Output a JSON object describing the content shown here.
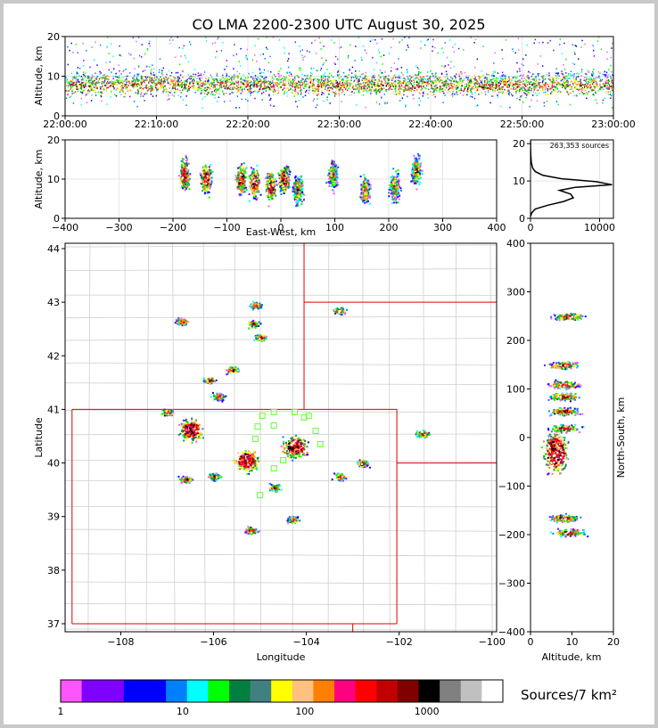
{
  "chart_data": [
    {
      "type": "heatmap",
      "panel": "time-altitude",
      "title": "CO LMA 2200-2300 UTC August 30, 2025",
      "ylabel": "Altitude, km",
      "ylim": [
        0,
        20
      ],
      "y_ticks": [
        "0",
        "10",
        "20"
      ],
      "x_ticks": [
        "22:00:00",
        "22:10:00",
        "22:20:00",
        "22:30:00",
        "22:40:00",
        "22:50:00",
        "23:00:00"
      ],
      "grid": true
    },
    {
      "type": "heatmap",
      "panel": "eastwest-altitude",
      "xlabel": "East-West, km",
      "ylabel": "Altitude, km",
      "xlim": [
        -400,
        400
      ],
      "ylim": [
        0,
        20
      ],
      "x_ticks": [
        "−400",
        "−300",
        "−200",
        "−100",
        "0",
        "100",
        "200",
        "300",
        "400"
      ],
      "y_ticks": [
        "0",
        "10",
        "20"
      ],
      "blobs": [
        {
          "x": -180,
          "y": 11
        },
        {
          "x": -140,
          "y": 10
        },
        {
          "x": -75,
          "y": 10
        },
        {
          "x": -50,
          "y": 9
        },
        {
          "x": -20,
          "y": 8
        },
        {
          "x": 5,
          "y": 10
        },
        {
          "x": 30,
          "y": 7
        },
        {
          "x": 95,
          "y": 11
        },
        {
          "x": 155,
          "y": 7
        },
        {
          "x": 210,
          "y": 8
        },
        {
          "x": 250,
          "y": 12
        }
      ]
    },
    {
      "type": "line",
      "panel": "altitude-histogram",
      "annotation": "263,353 sources",
      "xlim": [
        0,
        12000
      ],
      "ylim": [
        0,
        21
      ],
      "x_ticks": [
        "0",
        "10000"
      ],
      "y_ticks": [
        "0",
        "10",
        "20"
      ],
      "profile": [
        [
          0,
          0.5
        ],
        [
          200,
          1.5
        ],
        [
          700,
          2.5
        ],
        [
          2500,
          3.5
        ],
        [
          4800,
          4.5
        ],
        [
          6200,
          5.5
        ],
        [
          5800,
          6.5
        ],
        [
          4200,
          7.5
        ],
        [
          6500,
          8.3
        ],
        [
          11800,
          9.0
        ],
        [
          9500,
          9.8
        ],
        [
          4500,
          10.6
        ],
        [
          1800,
          11.5
        ],
        [
          700,
          12.5
        ],
        [
          300,
          13.5
        ],
        [
          120,
          15
        ],
        [
          40,
          17
        ],
        [
          10,
          19
        ],
        [
          0,
          21
        ]
      ]
    },
    {
      "type": "heatmap",
      "panel": "plan-view",
      "xlabel": "Longitude",
      "ylabel": "Latitude",
      "xlim": [
        -109.2,
        -99.9
      ],
      "ylim": [
        36.85,
        44.1
      ],
      "x_ticks": [
        "−108",
        "−106",
        "−104",
        "−102",
        "−100"
      ],
      "y_ticks": [
        "37",
        "38",
        "39",
        "40",
        "41",
        "42",
        "43",
        "44"
      ],
      "stations": [
        [
          -104.7,
          40.95
        ],
        [
          -104.25,
          40.95
        ],
        [
          -104.05,
          40.85
        ],
        [
          -103.95,
          40.88
        ],
        [
          -104.95,
          40.88
        ],
        [
          -105.05,
          40.68
        ],
        [
          -104.7,
          40.7
        ],
        [
          -103.8,
          40.6
        ],
        [
          -105.1,
          40.45
        ],
        [
          -103.7,
          40.35
        ],
        [
          -104.2,
          40.2
        ],
        [
          -104.5,
          40.05
        ],
        [
          -104.7,
          39.9
        ],
        [
          -105.0,
          39.4
        ]
      ],
      "blobs": [
        {
          "lon": -104.25,
          "lat": 40.3
        },
        {
          "lon": -105.3,
          "lat": 40.05
        },
        {
          "lon": -106.5,
          "lat": 40.62
        },
        {
          "lon": -105.2,
          "lat": 38.75
        },
        {
          "lon": -104.3,
          "lat": 38.95
        },
        {
          "lon": -103.3,
          "lat": 42.85
        },
        {
          "lon": -101.5,
          "lat": 40.55
        },
        {
          "lon": -106.0,
          "lat": 39.75
        },
        {
          "lon": -105.9,
          "lat": 41.25
        },
        {
          "lon": -106.1,
          "lat": 41.55
        },
        {
          "lon": -105.6,
          "lat": 41.75
        },
        {
          "lon": -105.0,
          "lat": 42.35
        },
        {
          "lon": -105.15,
          "lat": 42.6
        },
        {
          "lon": -105.1,
          "lat": 42.95
        },
        {
          "lon": -106.7,
          "lat": 42.65
        },
        {
          "lon": -106.6,
          "lat": 39.7
        },
        {
          "lon": -103.3,
          "lat": 39.75
        },
        {
          "lon": -102.8,
          "lat": 40.0
        },
        {
          "lon": -107.0,
          "lat": 40.95
        },
        {
          "lon": -104.7,
          "lat": 39.55
        }
      ]
    },
    {
      "type": "heatmap",
      "panel": "altitude-northsouth",
      "xlabel": "Altitude, km",
      "ylabel": "North-South, km",
      "xlim": [
        0,
        20
      ],
      "ylim": [
        -400,
        400
      ],
      "x_ticks": [
        "0",
        "10",
        "20"
      ],
      "y_ticks": [
        "−400",
        "−300",
        "−200",
        "−100",
        "0",
        "100",
        "200",
        "300",
        "400"
      ],
      "blobs": [
        {
          "x": 9,
          "y": 250
        },
        {
          "x": 8,
          "y": 150
        },
        {
          "x": 8,
          "y": 110
        },
        {
          "x": 8,
          "y": 85
        },
        {
          "x": 8,
          "y": 55
        },
        {
          "x": 8,
          "y": 20
        },
        {
          "x": 6,
          "y": -30
        },
        {
          "x": 8,
          "y": -165
        },
        {
          "x": 9,
          "y": -195
        }
      ]
    },
    {
      "type": "colorbar",
      "label": "Sources/7 km²",
      "tick_labels": [
        "1",
        "10",
        "100",
        "1000"
      ],
      "colors": [
        "#ff55ff",
        "#8000ff",
        "#8000ff",
        "#0000ff",
        "#0000ff",
        "#0080ff",
        "#00ffff",
        "#00ff00",
        "#008040",
        "#408080",
        "#ffff00",
        "#ffc080",
        "#ff8000",
        "#ff0080",
        "#ff0000",
        "#c00000",
        "#800000",
        "#000000",
        "#808080",
        "#c0c0c0",
        "#ffffff"
      ]
    }
  ],
  "colors": {
    "frame": "#c8c8c8",
    "border_red": "#dd0000",
    "county": "#cfcfcf",
    "station": "#66ff33"
  }
}
